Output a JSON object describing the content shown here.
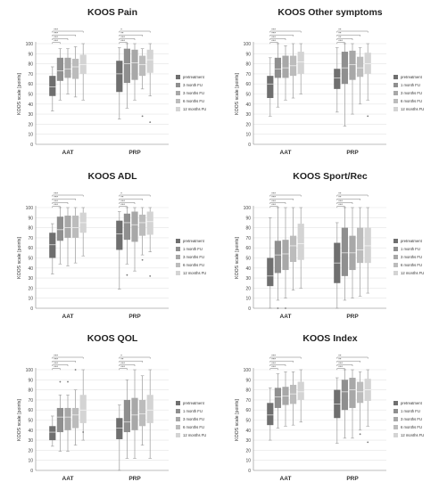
{
  "chart_data": [
    {
      "type": "box",
      "title": "KOOS Pain",
      "ylabel": "KOOS scale [points]",
      "ylim": [
        0,
        100
      ],
      "yticks": [
        0,
        10,
        20,
        30,
        40,
        50,
        60,
        70,
        80,
        90,
        100
      ],
      "groups": [
        "AAT",
        "PRP"
      ],
      "series_names": [
        "pretreatment",
        "3 month FU",
        "3 months FU",
        "6 months FU",
        "12 months FU"
      ],
      "significance": [
        [
          "***",
          "***",
          "***",
          "***"
        ],
        [
          "*",
          "**",
          "***",
          "***"
        ]
      ],
      "data": {
        "AAT": [
          [
            33,
            48,
            57,
            68,
            77
          ],
          [
            44,
            63,
            73,
            86,
            95
          ],
          [
            50,
            66,
            75,
            86,
            95
          ],
          [
            47,
            65,
            77,
            85,
            97
          ],
          [
            44,
            70,
            79,
            89,
            100
          ]
        ],
        "PRP": [
          [
            25,
            52,
            70,
            83,
            96
          ],
          [
            36,
            61,
            80,
            95,
            100
          ],
          [
            44,
            64,
            81,
            94,
            100
          ],
          [
            55,
            68,
            79,
            88,
            95
          ],
          [
            48,
            71,
            84,
            94,
            100
          ]
        ]
      },
      "outliers": {
        "AAT": [
          [],
          [],
          [],
          [],
          []
        ],
        "PRP": [
          [],
          [],
          [],
          [
            28
          ],
          [
            22
          ]
        ]
      }
    },
    {
      "type": "box",
      "title": "KOOS Other symptoms",
      "ylabel": "KOOS scale [points]",
      "ylim": [
        0,
        100
      ],
      "yticks": [
        0,
        10,
        20,
        30,
        40,
        50,
        60,
        70,
        80,
        90,
        100
      ],
      "groups": [
        "AAT",
        "PRP"
      ],
      "series_names": [
        "pretreatment",
        "1 month FU",
        "3 months FU",
        "6 months FU",
        "12 months FU"
      ],
      "significance": [
        [
          "***",
          "***",
          "***",
          "***"
        ],
        [
          "**",
          "**",
          "**",
          "***"
        ]
      ],
      "data": {
        "AAT": [
          [
            28,
            46,
            60,
            68,
            86
          ],
          [
            37,
            66,
            75,
            86,
            100
          ],
          [
            44,
            66,
            76,
            88,
            98
          ],
          [
            46,
            68,
            78,
            88,
            100
          ],
          [
            50,
            70,
            82,
            92,
            100
          ]
        ],
        "PRP": [
          [
            32,
            55,
            66,
            75,
            96
          ],
          [
            18,
            60,
            76,
            92,
            100
          ],
          [
            30,
            64,
            79,
            93,
            100
          ],
          [
            40,
            67,
            76,
            87,
            96
          ],
          [
            44,
            70,
            80,
            91,
            100
          ]
        ]
      },
      "outliers": {
        "AAT": [
          [],
          [],
          [],
          [],
          []
        ],
        "PRP": [
          [],
          [],
          [],
          [],
          [
            28
          ]
        ]
      }
    },
    {
      "type": "box",
      "title": "KOOS ADL",
      "ylabel": "KOOS scale [points]",
      "ylim": [
        0,
        100
      ],
      "yticks": [
        0,
        10,
        20,
        30,
        40,
        50,
        60,
        70,
        80,
        90,
        100
      ],
      "groups": [
        "AAT",
        "PRP"
      ],
      "series_names": [
        "pretreatment",
        "1 month FU",
        "3 months FU",
        "6 months FU",
        "12 months FU"
      ],
      "significance": [
        [
          "***",
          "***",
          "***",
          "***"
        ],
        [
          "*",
          "**",
          "***",
          "***"
        ]
      ],
      "data": {
        "AAT": [
          [
            34,
            50,
            63,
            75,
            84
          ],
          [
            44,
            67,
            78,
            91,
            100
          ],
          [
            42,
            70,
            80,
            92,
            100
          ],
          [
            45,
            70,
            80,
            92,
            100
          ],
          [
            52,
            75,
            85,
            95,
            100
          ]
        ],
        "PRP": [
          [
            19,
            58,
            74,
            87,
            96
          ],
          [
            44,
            68,
            85,
            94,
            100
          ],
          [
            37,
            66,
            83,
            96,
            100
          ],
          [
            53,
            72,
            85,
            93,
            100
          ],
          [
            56,
            73,
            86,
            96,
            100
          ]
        ]
      },
      "outliers": {
        "AAT": [
          [],
          [],
          [],
          [],
          []
        ],
        "PRP": [
          [],
          [
            33
          ],
          [],
          [
            48
          ],
          [
            32
          ]
        ]
      }
    },
    {
      "type": "box",
      "title": "KOOS Sport/Rec",
      "ylabel": "KOOS scale [points]",
      "ylim": [
        0,
        100
      ],
      "yticks": [
        0,
        10,
        20,
        30,
        40,
        50,
        60,
        70,
        80,
        90,
        100
      ],
      "groups": [
        "AAT",
        "PRP"
      ],
      "series_names": [
        "pretreatment",
        "1 month FU",
        "3 months FU",
        "6 months FU",
        "12 months FU"
      ],
      "significance": [
        [
          "***",
          "***",
          "***",
          "***"
        ],
        [
          "**",
          "**",
          "***",
          "***"
        ]
      ],
      "data": {
        "AAT": [
          [
            0,
            22,
            32,
            50,
            90
          ],
          [
            8,
            35,
            53,
            67,
            100
          ],
          [
            10,
            38,
            54,
            68,
            100
          ],
          [
            18,
            46,
            62,
            72,
            100
          ],
          [
            20,
            48,
            64,
            84,
            100
          ]
        ],
        "PRP": [
          [
            0,
            25,
            45,
            65,
            85
          ],
          [
            8,
            32,
            55,
            80,
            100
          ],
          [
            10,
            38,
            55,
            72,
            100
          ],
          [
            12,
            45,
            58,
            80,
            100
          ],
          [
            15,
            45,
            62,
            80,
            100
          ]
        ]
      },
      "outliers": {
        "AAT": [
          [],
          [
            0
          ],
          [
            0
          ],
          [],
          []
        ],
        "PRP": [
          [],
          [],
          [],
          [],
          []
        ]
      }
    },
    {
      "type": "box",
      "title": "KOOS QOL",
      "ylabel": "KOOS scale [points]",
      "ylim": [
        0,
        100
      ],
      "yticks": [
        0,
        10,
        20,
        30,
        40,
        50,
        60,
        70,
        80,
        90,
        100
      ],
      "groups": [
        "AAT",
        "PRP"
      ],
      "series_names": [
        "pretreatment",
        "1 month FU",
        "3 months FU",
        "6 months FU",
        "12 months FU"
      ],
      "significance": [
        [
          "***",
          "***",
          "***",
          "***"
        ],
        [
          "*",
          "**",
          "***",
          "***"
        ]
      ],
      "data": {
        "AAT": [
          [
            24,
            30,
            38,
            44,
            54
          ],
          [
            19,
            38,
            53,
            62,
            75
          ],
          [
            19,
            40,
            53,
            62,
            75
          ],
          [
            25,
            42,
            55,
            62,
            80
          ],
          [
            30,
            47,
            60,
            75,
            100
          ]
        ],
        "PRP": [
          [
            0,
            31,
            42,
            52,
            65
          ],
          [
            12,
            38,
            48,
            70,
            90
          ],
          [
            12,
            40,
            55,
            72,
            100
          ],
          [
            25,
            44,
            56,
            70,
            94
          ],
          [
            12,
            47,
            60,
            75,
            100
          ]
        ]
      },
      "outliers": {
        "AAT": [
          [],
          [
            88
          ],
          [
            88
          ],
          [
            100
          ],
          [
            38
          ]
        ],
        "PRP": [
          [],
          [],
          [],
          [],
          []
        ]
      }
    },
    {
      "type": "box",
      "title": "KOOS Index",
      "ylabel": "KOOS scale [points]",
      "ylim": [
        0,
        100
      ],
      "yticks": [
        0,
        10,
        20,
        30,
        40,
        50,
        60,
        70,
        80,
        90,
        100
      ],
      "groups": [
        "AAT",
        "PRP"
      ],
      "series_names": [
        "pretreatment",
        "1 month FU",
        "3 months FU",
        "6 months FU",
        "12 months FU"
      ],
      "significance": [
        [
          "***",
          "***",
          "***",
          "***"
        ],
        [
          "**",
          "**",
          "***",
          "***"
        ]
      ],
      "data": {
        "AAT": [
          [
            30,
            45,
            55,
            67,
            82
          ],
          [
            42,
            62,
            73,
            82,
            96
          ],
          [
            44,
            65,
            74,
            83,
            98
          ],
          [
            45,
            66,
            76,
            85,
            98
          ],
          [
            48,
            70,
            78,
            88,
            100
          ]
        ],
        "PRP": [
          [
            27,
            52,
            66,
            80,
            92
          ],
          [
            32,
            60,
            78,
            90,
            100
          ],
          [
            32,
            62,
            80,
            92,
            100
          ],
          [
            40,
            67,
            78,
            88,
            98
          ],
          [
            44,
            69,
            80,
            91,
            100
          ]
        ]
      },
      "outliers": {
        "AAT": [
          [],
          [],
          [],
          [],
          []
        ],
        "PRP": [
          [],
          [],
          [],
          [
            36
          ],
          [
            28
          ]
        ]
      }
    }
  ],
  "colors": {
    "series": [
      "#6f6f6f",
      "#8f8f8f",
      "#a8a8a8",
      "#bcbcbc",
      "#d4d4d4"
    ],
    "whisker": "#9a9a9a"
  }
}
